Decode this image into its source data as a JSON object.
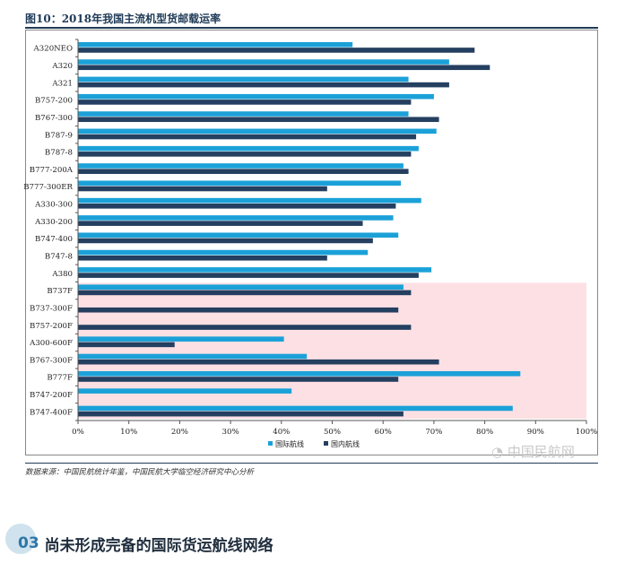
{
  "figure": {
    "title": "图10：2018年我国主流机型货邮载运率",
    "source": "数据来源：中国民航统计年鉴，中国民航大学临空经济研究中心分析",
    "watermark": "中国民航网"
  },
  "section": {
    "number": "03",
    "title": "尚未形成完备的国际货运航线网络"
  },
  "colors": {
    "international": "#1ba1d8",
    "domestic": "#243f60",
    "highlight": "#fde0e4"
  },
  "chart_data": {
    "type": "bar",
    "orientation": "horizontal",
    "categories": [
      "A320NEO",
      "A320",
      "A321",
      "B757-200",
      "B767-300",
      "B787-9",
      "B787-8",
      "B777-200A",
      "B777-300ER",
      "A330-300",
      "A330-200",
      "B747-400",
      "B747-8",
      "A380",
      "B737F",
      "B737-300F",
      "B757-200F",
      "A300-600F",
      "B767-300F",
      "B777F",
      "B747-200F",
      "B747-400F"
    ],
    "series": [
      {
        "name": "国际航线",
        "values": [
          54,
          73,
          65,
          70,
          65,
          70.5,
          67,
          64,
          63.5,
          67.5,
          62,
          63,
          57,
          69.5,
          64,
          null,
          null,
          40.5,
          45,
          87,
          42,
          85.5
        ]
      },
      {
        "name": "国内航线",
        "values": [
          78,
          81,
          73,
          65.5,
          71,
          66.5,
          65.5,
          65,
          49,
          62.5,
          56,
          58,
          49,
          67,
          65.5,
          63,
          65.5,
          19,
          71,
          63,
          null,
          64
        ]
      }
    ],
    "highlight_categories": [
      "B737F",
      "B737-300F",
      "B757-200F",
      "A300-600F",
      "B767-300F",
      "B777F",
      "B747-200F",
      "B747-400F"
    ],
    "xlim": [
      0,
      100
    ],
    "x_ticks": [
      "0%",
      "10%",
      "20%",
      "30%",
      "40%",
      "50%",
      "60%",
      "70%",
      "80%",
      "90%",
      "100%"
    ],
    "legend_position": "bottom-center",
    "grid": false
  }
}
